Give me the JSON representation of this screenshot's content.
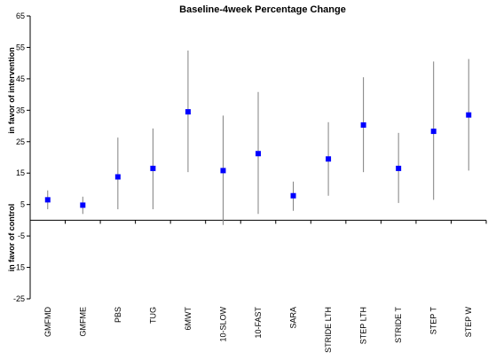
{
  "chart_data": {
    "type": "scatter",
    "title": "Baseline-4week Percentage Change",
    "ylabel_positive": "in favor of intervention",
    "ylabel_negative": "in favor of control",
    "ylim": [
      -25,
      65
    ],
    "yticks": [
      -25,
      -15,
      -5,
      5,
      15,
      25,
      35,
      45,
      55,
      65
    ],
    "grid": false,
    "legend": "none",
    "marker_color": "#0000ff",
    "errorbar_color": "#808080",
    "categories": [
      "GMFMD",
      "GMFME",
      "PBS",
      "TUG",
      "6MWT",
      "10-SLOW",
      "10-FAST",
      "SARA",
      "STRIDE LTH",
      "STEP LTH",
      "STRIDE T",
      "STEP T",
      "STEP W"
    ],
    "values": [
      6.5,
      4.8,
      13.8,
      16.5,
      34.5,
      15.8,
      21.2,
      7.8,
      19.5,
      30.3,
      16.5,
      28.3,
      33.5
    ],
    "lower": [
      3.5,
      2.0,
      3.5,
      3.5,
      15.3,
      -1.5,
      2.0,
      3.0,
      7.8,
      15.3,
      5.5,
      6.5,
      15.8
    ],
    "upper": [
      9.5,
      7.5,
      26.3,
      29.2,
      54.0,
      33.3,
      40.8,
      12.3,
      31.2,
      45.5,
      27.8,
      50.5,
      51.3
    ]
  }
}
